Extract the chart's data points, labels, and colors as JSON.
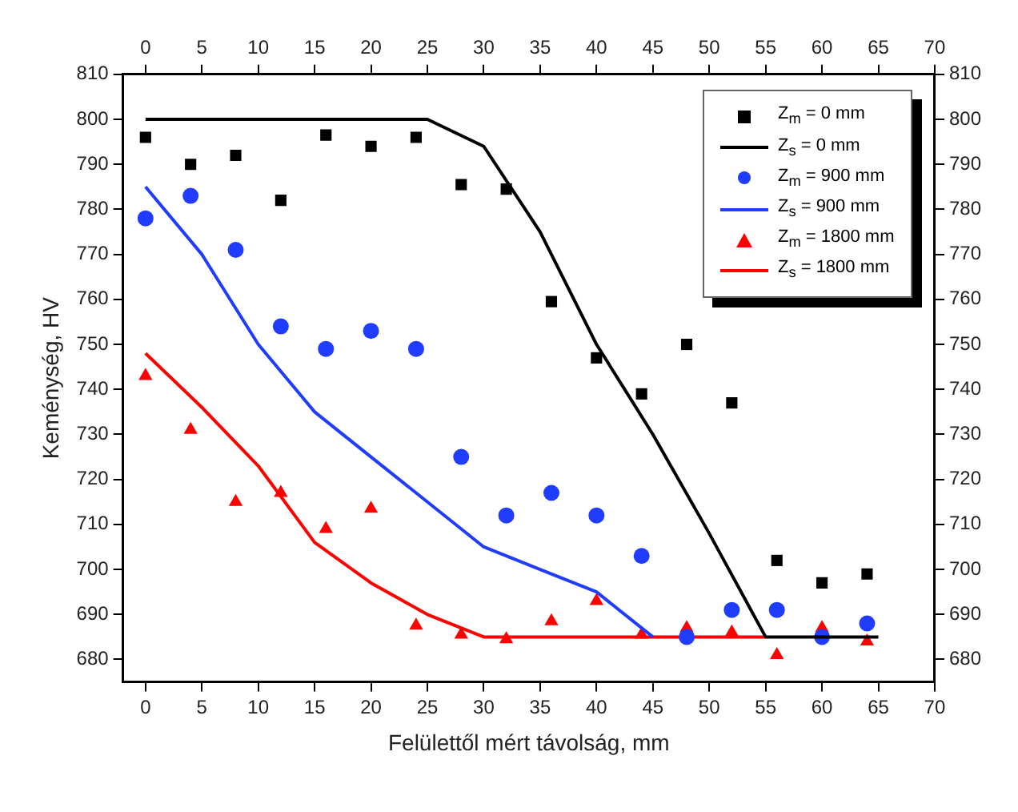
{
  "chart_data": {
    "type": "scatter",
    "xlabel": "Felülettől mért távolság, mm",
    "ylabel": "Keménység, HV",
    "xlim": [
      -2,
      70
    ],
    "xticks": [
      0,
      5,
      10,
      15,
      20,
      25,
      30,
      35,
      40,
      45,
      50,
      55,
      60,
      65,
      70
    ],
    "x2lim": [
      -2,
      70
    ],
    "x2ticks": [
      0,
      5,
      10,
      15,
      20,
      25,
      30,
      35,
      40,
      45,
      50,
      55,
      60,
      65,
      70
    ],
    "ylim": [
      675,
      810
    ],
    "yticks": [
      680,
      690,
      700,
      710,
      720,
      730,
      740,
      750,
      760,
      770,
      780,
      790,
      800,
      810
    ],
    "y2lim": [
      675,
      810
    ],
    "y2ticks": [
      680,
      690,
      700,
      710,
      720,
      730,
      740,
      750,
      760,
      770,
      780,
      790,
      800,
      810
    ],
    "grid": false,
    "legend": "top right",
    "series": [
      {
        "name": "Z$_{m}$ = 0 mm",
        "type": "scatter",
        "marker": "square",
        "color": "#000000",
        "x": [
          0,
          4,
          8,
          12,
          16,
          20,
          24,
          28,
          32,
          36,
          40,
          44,
          48,
          52,
          56,
          60,
          64
        ],
        "values": [
          796,
          790,
          792,
          782,
          796.5,
          794,
          796,
          785.5,
          784.5,
          759.5,
          747,
          739,
          750,
          737,
          702,
          697,
          699
        ]
      },
      {
        "name": "Z$_{s}$ = 0 mm",
        "type": "line",
        "color": "#000000",
        "x": [
          0,
          25,
          30,
          35,
          40,
          45,
          50,
          55,
          65
        ],
        "values": [
          800,
          800,
          794,
          775,
          750,
          730,
          708,
          685,
          685
        ]
      },
      {
        "name": "Z$_{m}$ = 900 mm",
        "type": "scatter",
        "marker": "circle",
        "color": "#1f3cff",
        "x": [
          0,
          4,
          8,
          12,
          16,
          20,
          24,
          28,
          32,
          36,
          40,
          44,
          48,
          52,
          56,
          60,
          64
        ],
        "values": [
          778,
          783,
          771,
          754,
          749,
          753,
          749,
          725,
          712,
          717,
          712,
          703,
          685,
          691,
          691,
          685,
          688
        ]
      },
      {
        "name": "Z$_{s}$ = 900 mm",
        "type": "line",
        "color": "#1f3cff",
        "x": [
          0,
          5,
          10,
          15,
          20,
          25,
          30,
          35,
          40,
          45
        ],
        "values": [
          785,
          770,
          750,
          735,
          725,
          715,
          705,
          700,
          695,
          685
        ]
      },
      {
        "name": "Z$_{m}$ = 1800 mm",
        "type": "scatter",
        "marker": "triangle",
        "color": "#ff0000",
        "x": [
          0,
          4,
          8,
          12,
          16,
          20,
          24,
          28,
          32,
          36,
          40,
          44,
          48,
          52,
          56,
          60,
          64
        ],
        "values": [
          743,
          731,
          715,
          717,
          709,
          713.5,
          687.5,
          685.5,
          684.5,
          688.5,
          693,
          685.5,
          687,
          686,
          681,
          687,
          684
        ]
      },
      {
        "name": "Z$_{s}$ = 1800 mm",
        "type": "line",
        "color": "#ff0000",
        "x": [
          0,
          5,
          10,
          15,
          20,
          25,
          30,
          55
        ],
        "values": [
          748,
          736,
          723,
          706,
          697,
          690,
          685,
          685
        ]
      }
    ]
  }
}
